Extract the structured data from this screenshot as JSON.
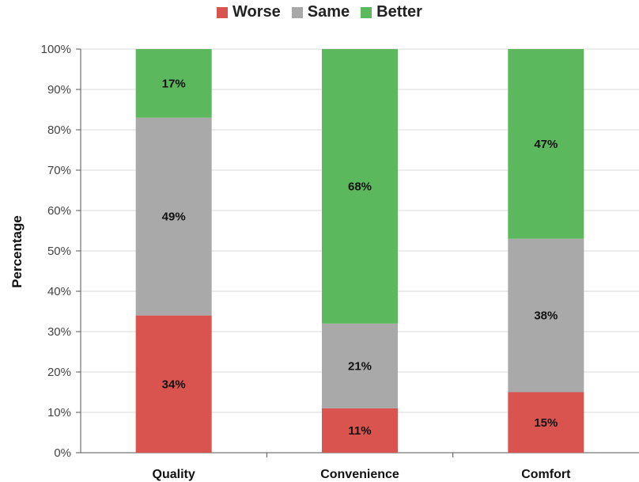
{
  "chart_data": {
    "type": "bar",
    "stacked": true,
    "categories": [
      "Quality",
      "Convenience",
      "Comfort"
    ],
    "series": [
      {
        "name": "Worse",
        "values": [
          34,
          11,
          15
        ],
        "labels": [
          "34%",
          "11%",
          "15%"
        ],
        "color": "#d9534f"
      },
      {
        "name": "Same",
        "values": [
          49,
          21,
          38
        ],
        "labels": [
          "49%",
          "21%",
          "38%"
        ],
        "color": "#a9a9a9"
      },
      {
        "name": "Better",
        "values": [
          17,
          68,
          47
        ],
        "labels": [
          "17%",
          "68%",
          "47%"
        ],
        "color": "#5cb85c"
      }
    ],
    "ylabel": "Percentage",
    "xlabel": "",
    "ylim": [
      0,
      100
    ],
    "yticks": [
      "0%",
      "10%",
      "20%",
      "30%",
      "40%",
      "50%",
      "60%",
      "70%",
      "80%",
      "90%",
      "100%"
    ],
    "grid": true,
    "legend_position": "top-center"
  }
}
